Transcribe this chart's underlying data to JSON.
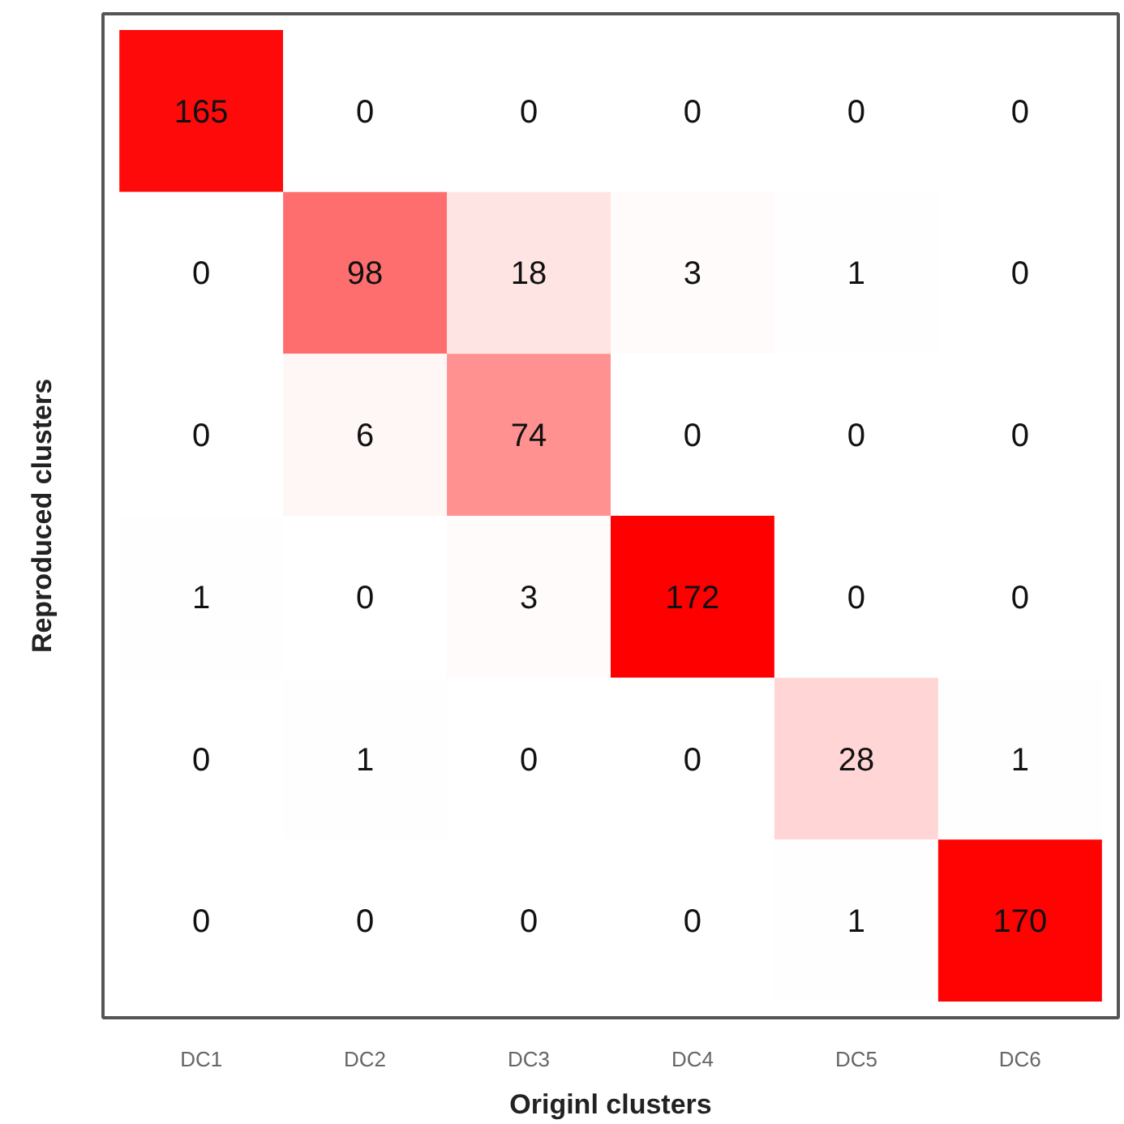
{
  "chart_data": {
    "type": "heatmap",
    "xlabel": "Originl clusters",
    "ylabel": "Reproduced clusters",
    "categories": [
      "DC1",
      "DC2",
      "DC3",
      "DC4",
      "DC5",
      "DC6"
    ],
    "y_categories": [
      null,
      null,
      null,
      null,
      null,
      null
    ],
    "cells": [
      [
        165,
        0,
        0,
        0,
        0,
        0
      ],
      [
        0,
        98,
        18,
        3,
        1,
        0
      ],
      [
        0,
        6,
        74,
        0,
        0,
        0
      ],
      [
        1,
        0,
        3,
        172,
        0,
        0
      ],
      [
        0,
        1,
        0,
        0,
        28,
        1
      ],
      [
        0,
        0,
        0,
        0,
        1,
        170
      ]
    ],
    "color": "#ff0000",
    "data_labels": true,
    "tick_labels": "x"
  }
}
